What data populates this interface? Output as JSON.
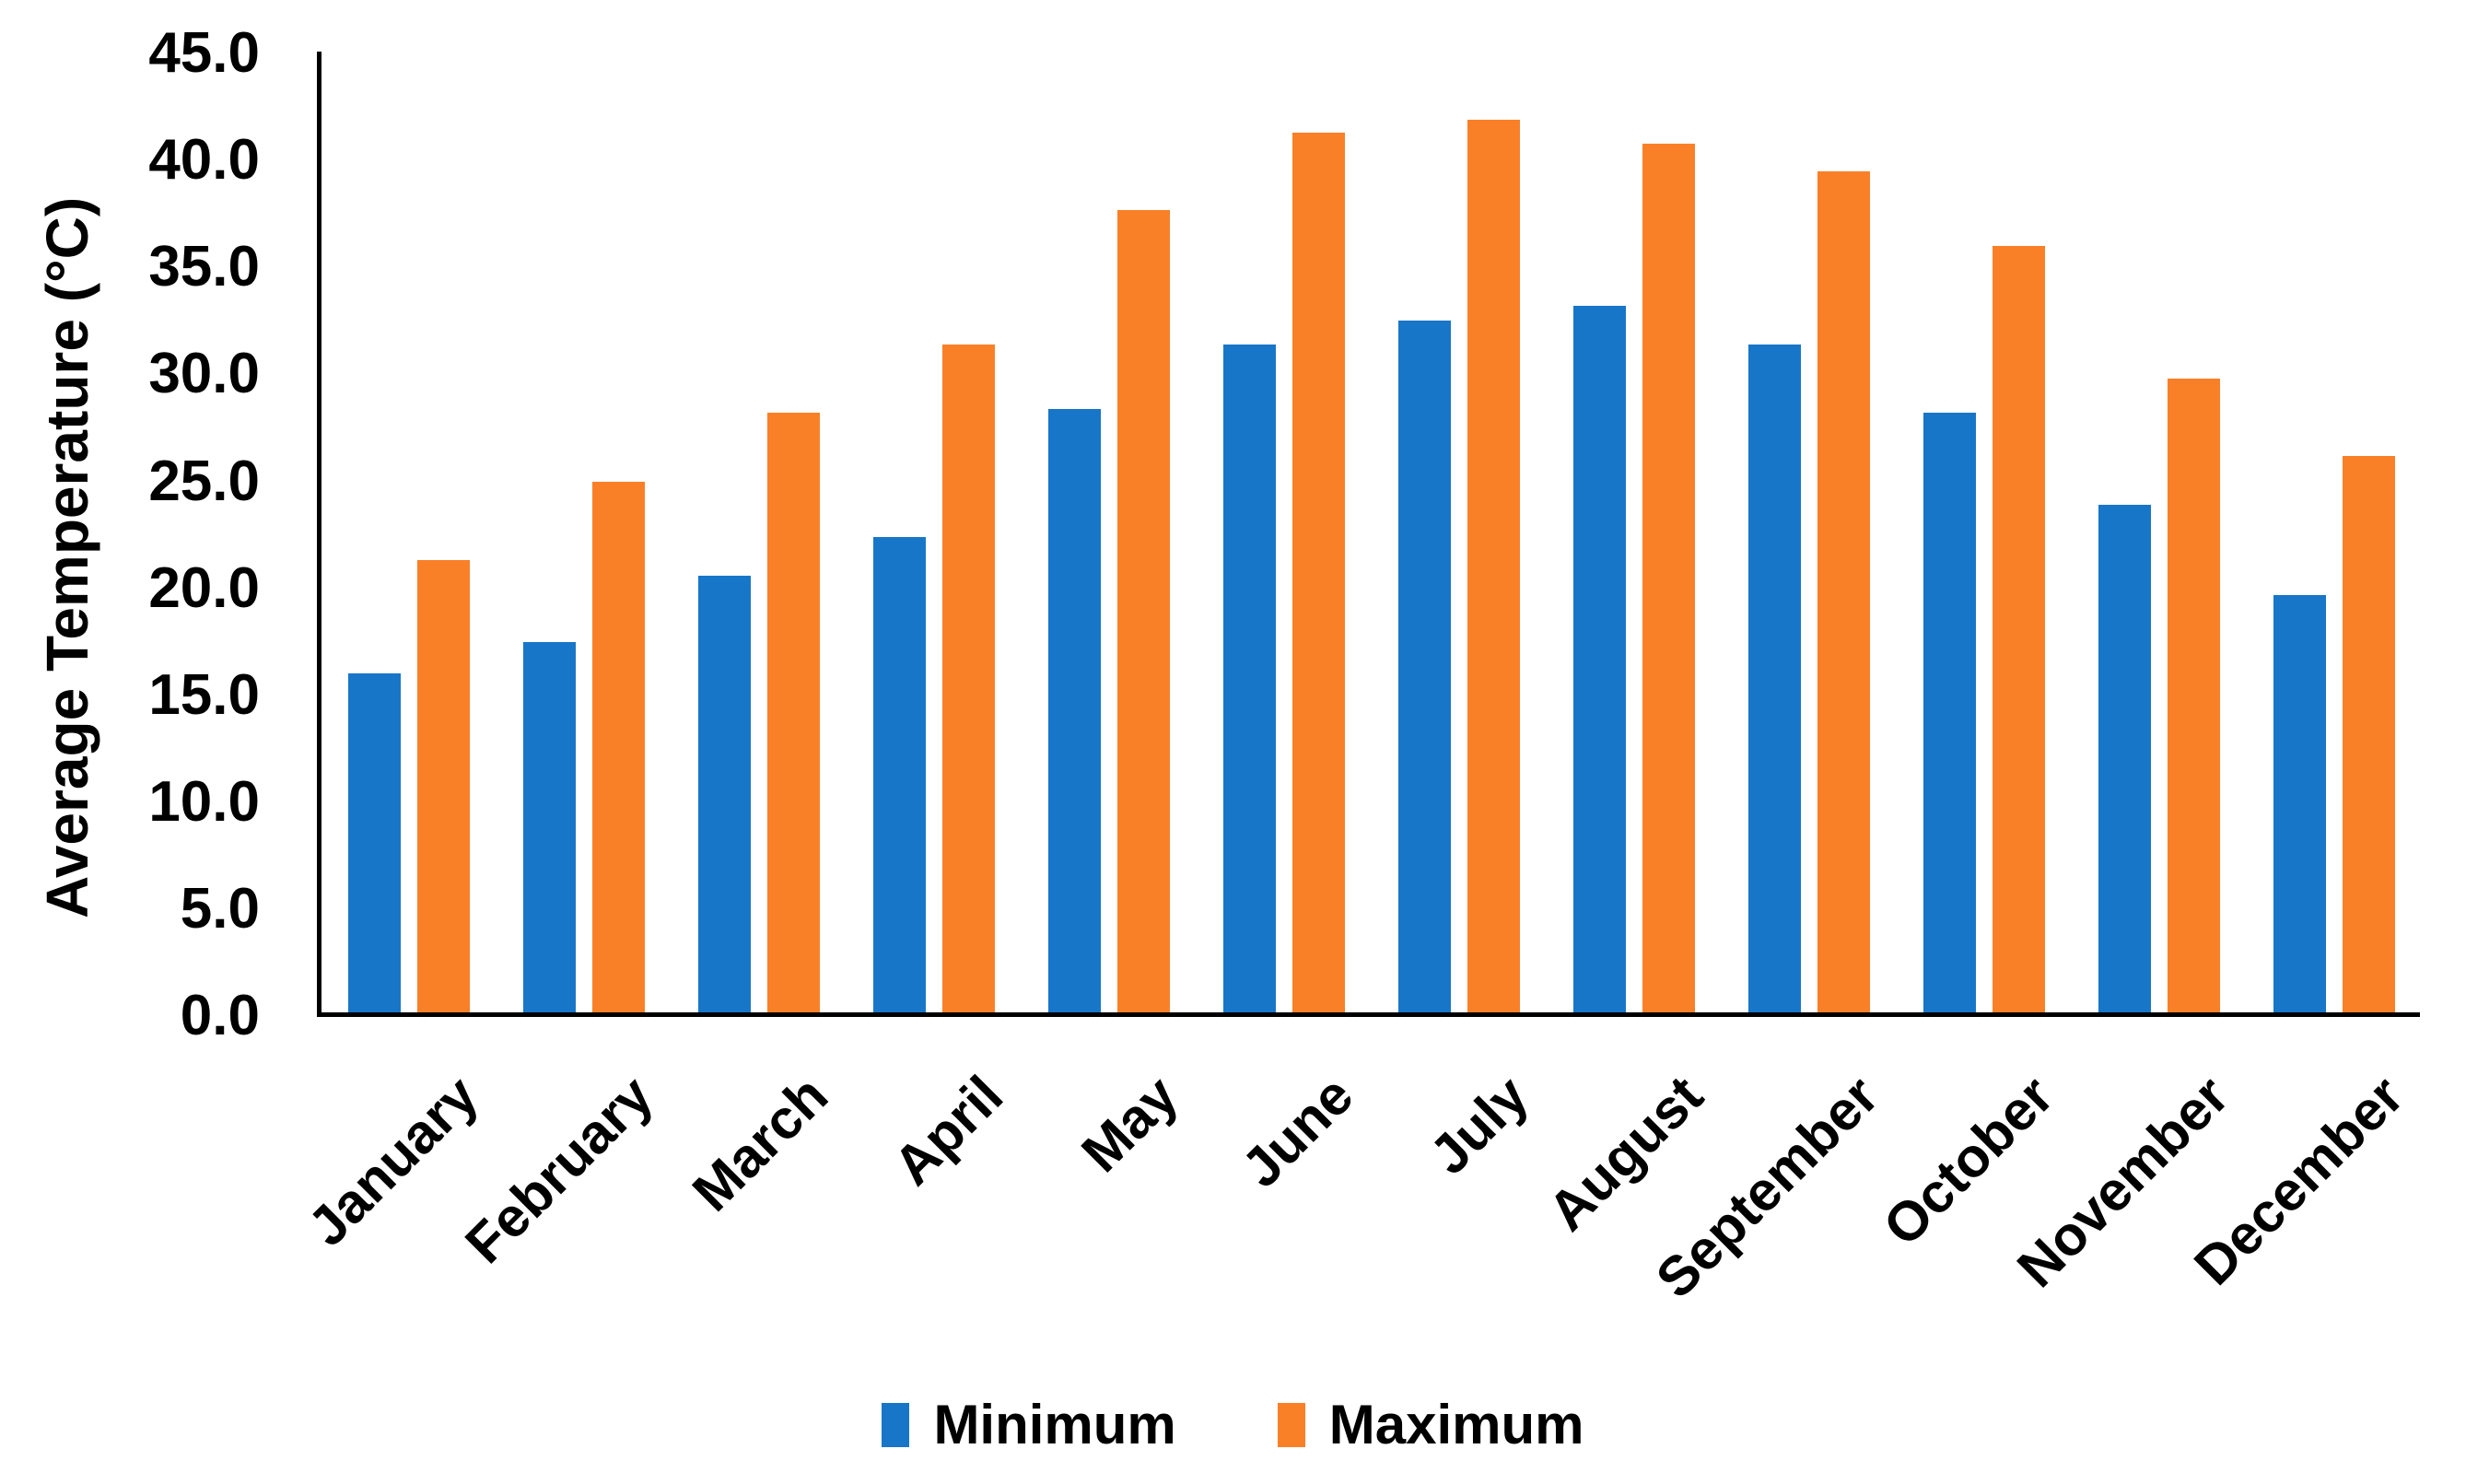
{
  "chart_data": {
    "type": "bar",
    "title": "",
    "ylabel": "Average Temperature (°C)",
    "xlabel": "",
    "ylim": [
      0,
      45
    ],
    "yticks": [
      0,
      5,
      10,
      15,
      20,
      25,
      30,
      35,
      40,
      45
    ],
    "ytick_labels": [
      "0.0",
      "5.0",
      "10.0",
      "15.0",
      "20.0",
      "25.0",
      "30.0",
      "35.0",
      "40.0",
      "45.0"
    ],
    "categories": [
      "January",
      "February",
      "March",
      "April",
      "May",
      "June",
      "July",
      "August",
      "September",
      "October",
      "November",
      "December"
    ],
    "series": [
      {
        "name": "Minimum",
        "color": "#1876C8",
        "values": [
          16.0,
          17.5,
          20.6,
          22.4,
          28.4,
          31.4,
          32.5,
          33.2,
          31.4,
          28.2,
          23.9,
          19.7
        ]
      },
      {
        "name": "Maximum",
        "color": "#FA8028",
        "values": [
          21.3,
          25.0,
          28.2,
          31.4,
          37.7,
          41.3,
          41.9,
          40.8,
          39.5,
          36.0,
          29.8,
          26.2
        ]
      }
    ],
    "legend": {
      "position": "bottom",
      "entries": [
        "Minimum",
        "Maximum"
      ]
    },
    "grid": false,
    "axis_color": "#000000",
    "text_color": "#000000",
    "background": "#FFFFFF"
  }
}
